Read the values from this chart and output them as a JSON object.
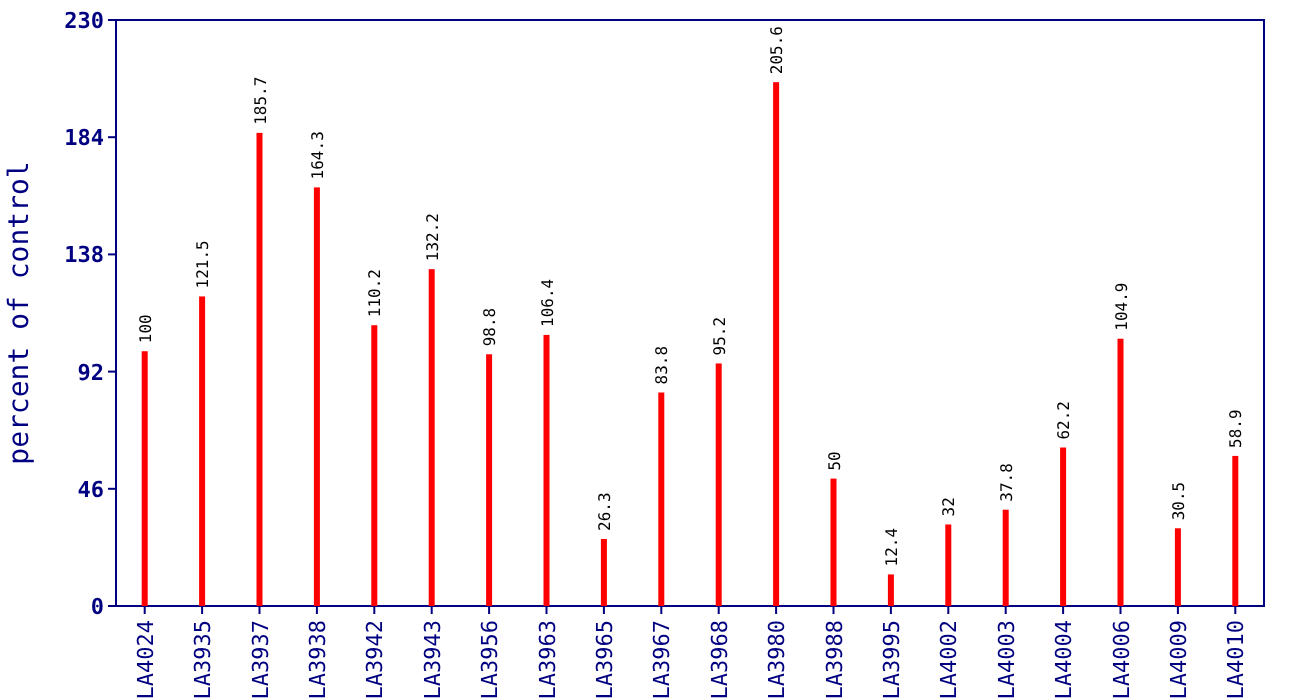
{
  "chart_data": {
    "type": "bar",
    "ylabel": "percent of control",
    "categories": [
      "LA4024",
      "LA3935",
      "LA3937",
      "LA3938",
      "LA3942",
      "LA3943",
      "LA3956",
      "LA3963",
      "LA3965",
      "LA3967",
      "LA3968",
      "LA3980",
      "LA3988",
      "LA3995",
      "LA4002",
      "LA4003",
      "LA4004",
      "LA4006",
      "LA4009",
      "LA4010"
    ],
    "values": [
      100,
      121.5,
      185.7,
      164.3,
      110.2,
      132.2,
      98.8,
      106.4,
      26.3,
      83.8,
      95.2,
      205.6,
      50,
      12.4,
      32,
      37.8,
      62.2,
      104.9,
      30.5,
      58.9
    ],
    "color": "#ff0000",
    "ylim": [
      0,
      230
    ],
    "yticks": [
      0,
      46,
      92,
      138,
      184,
      230
    ],
    "data_labels": true
  }
}
